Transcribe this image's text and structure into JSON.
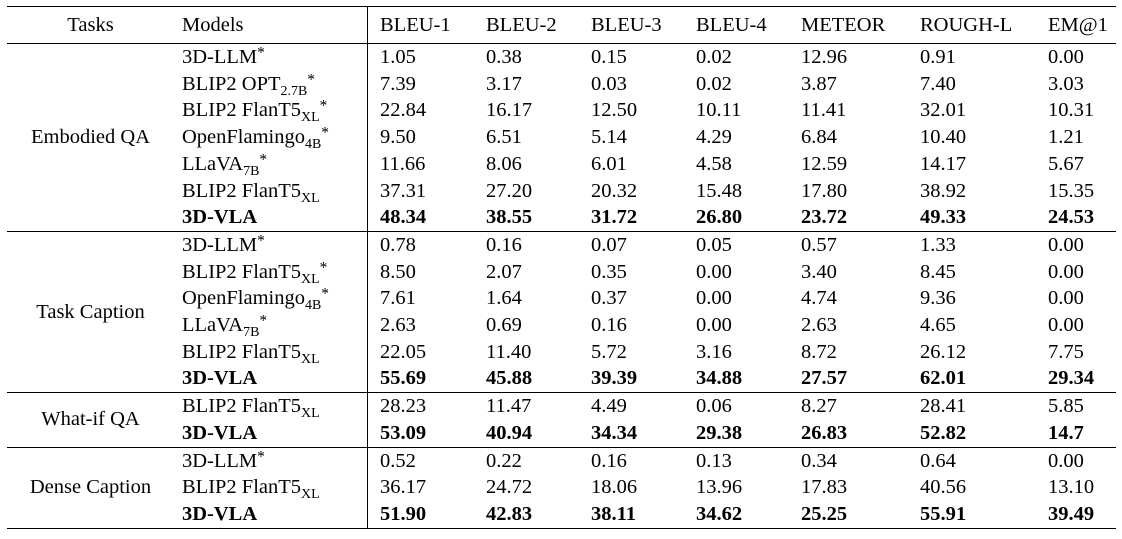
{
  "headers": [
    "Tasks",
    "Models",
    "BLEU-1",
    "BLEU-2",
    "BLEU-3",
    "BLEU-4",
    "METEOR",
    "ROUGH-L",
    "EM@1"
  ],
  "groups": [
    {
      "task": "Embodied QA",
      "rows": [
        {
          "model": "3D-LLM",
          "sub": "",
          "star": "*",
          "bold": false,
          "values": [
            "1.05",
            "0.38",
            "0.15",
            "0.02",
            "12.96",
            "0.91",
            "0.00"
          ]
        },
        {
          "model": "BLIP2 OPT",
          "sub": "2.7B",
          "star": "*",
          "bold": false,
          "values": [
            "7.39",
            "3.17",
            "0.03",
            "0.02",
            "3.87",
            "7.40",
            "3.03"
          ]
        },
        {
          "model": "BLIP2 FlanT5",
          "sub": "XL",
          "star": "*",
          "bold": false,
          "values": [
            "22.84",
            "16.17",
            "12.50",
            "10.11",
            "11.41",
            "32.01",
            "10.31"
          ]
        },
        {
          "model": "OpenFlamingo",
          "sub": "4B",
          "star": "*",
          "bold": false,
          "values": [
            "9.50",
            "6.51",
            "5.14",
            "4.29",
            "6.84",
            "10.40",
            "1.21"
          ]
        },
        {
          "model": "LLaVA",
          "sub": "7B",
          "star": "*",
          "bold": false,
          "values": [
            "11.66",
            "8.06",
            "6.01",
            "4.58",
            "12.59",
            "14.17",
            "5.67"
          ]
        },
        {
          "model": "BLIP2 FlanT5",
          "sub": "XL",
          "star": "",
          "bold": false,
          "values": [
            "37.31",
            "27.20",
            "20.32",
            "15.48",
            "17.80",
            "38.92",
            "15.35"
          ]
        },
        {
          "model": "3D-VLA",
          "sub": "",
          "star": "",
          "bold": true,
          "values": [
            "48.34",
            "38.55",
            "31.72",
            "26.80",
            "23.72",
            "49.33",
            "24.53"
          ]
        }
      ]
    },
    {
      "task": "Task Caption",
      "rows": [
        {
          "model": "3D-LLM",
          "sub": "",
          "star": "*",
          "bold": false,
          "values": [
            "0.78",
            "0.16",
            "0.07",
            "0.05",
            "0.57",
            "1.33",
            "0.00"
          ]
        },
        {
          "model": "BLIP2 FlanT5",
          "sub": "XL",
          "star": "*",
          "bold": false,
          "values": [
            "8.50",
            "2.07",
            "0.35",
            "0.00",
            "3.40",
            "8.45",
            "0.00"
          ]
        },
        {
          "model": "OpenFlamingo",
          "sub": "4B",
          "star": "*",
          "bold": false,
          "values": [
            "7.61",
            "1.64",
            "0.37",
            "0.00",
            "4.74",
            "9.36",
            "0.00"
          ]
        },
        {
          "model": "LLaVA",
          "sub": "7B",
          "star": "*",
          "bold": false,
          "values": [
            "2.63",
            "0.69",
            "0.16",
            "0.00",
            "2.63",
            "4.65",
            "0.00"
          ]
        },
        {
          "model": "BLIP2 FlanT5",
          "sub": "XL",
          "star": "",
          "bold": false,
          "values": [
            "22.05",
            "11.40",
            "5.72",
            "3.16",
            "8.72",
            "26.12",
            "7.75"
          ]
        },
        {
          "model": "3D-VLA",
          "sub": "",
          "star": "",
          "bold": true,
          "values": [
            "55.69",
            "45.88",
            "39.39",
            "34.88",
            "27.57",
            "62.01",
            "29.34"
          ]
        }
      ]
    },
    {
      "task": "What-if QA",
      "rows": [
        {
          "model": "BLIP2 FlanT5",
          "sub": "XL",
          "star": "",
          "bold": false,
          "values": [
            "28.23",
            "11.47",
            "4.49",
            "0.06",
            "8.27",
            "28.41",
            "5.85"
          ]
        },
        {
          "model": "3D-VLA",
          "sub": "",
          "star": "",
          "bold": true,
          "values": [
            "53.09",
            "40.94",
            "34.34",
            "29.38",
            "26.83",
            "52.82",
            "14.7"
          ]
        }
      ]
    },
    {
      "task": "Dense Caption",
      "rows": [
        {
          "model": "3D-LLM",
          "sub": "",
          "star": "*",
          "bold": false,
          "values": [
            "0.52",
            "0.22",
            "0.16",
            "0.13",
            "0.34",
            "0.64",
            "0.00"
          ]
        },
        {
          "model": "BLIP2 FlanT5",
          "sub": "XL",
          "star": "",
          "bold": false,
          "values": [
            "36.17",
            "24.72",
            "18.06",
            "13.96",
            "17.83",
            "40.56",
            "13.10"
          ]
        },
        {
          "model": "3D-VLA",
          "sub": "",
          "star": "",
          "bold": true,
          "values": [
            "51.90",
            "42.83",
            "38.11",
            "34.62",
            "25.25",
            "55.91",
            "39.49"
          ]
        }
      ]
    }
  ]
}
